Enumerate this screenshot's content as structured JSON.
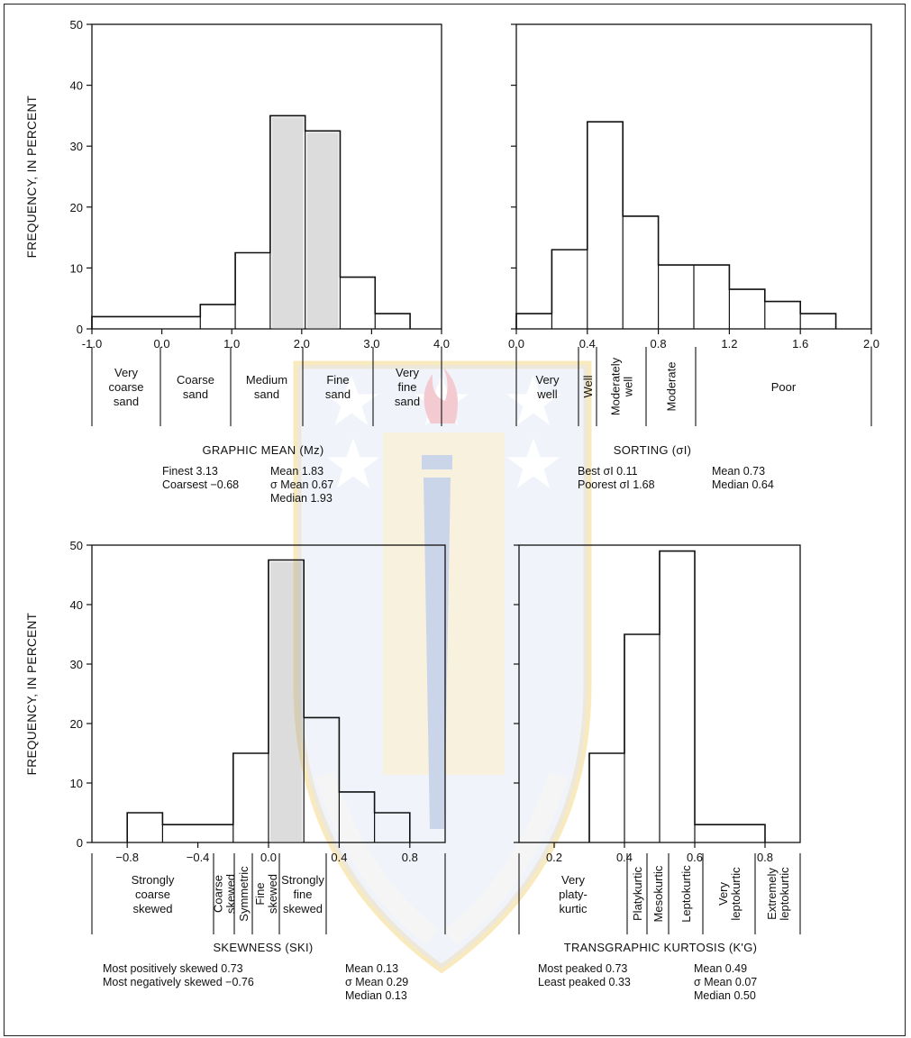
{
  "chart_data": [
    {
      "type": "bar",
      "title": "GRAPHIC MEAN (Mz)",
      "xlabel": "",
      "ylabel": "FREQUENCY, IN PERCENT",
      "xlim": [
        -1.0,
        4.0
      ],
      "ylim": [
        0,
        50
      ],
      "x_ticks": [
        "-1.0",
        "0.0",
        "1.0",
        "2.0",
        "3.0",
        "4.0"
      ],
      "y_ticks": [
        "0",
        "10",
        "20",
        "30",
        "40",
        "50"
      ],
      "bin_edges": [
        -1.0,
        0.55,
        1.05,
        1.55,
        2.05,
        2.55,
        3.05,
        3.55
      ],
      "values": [
        2,
        4,
        12.5,
        35,
        32.5,
        8.5,
        2.5
      ],
      "classes": [
        {
          "label": "Very coarse sand",
          "lines": [
            "Very",
            "coarse",
            "sand"
          ]
        },
        {
          "label": "Coarse sand",
          "lines": [
            "Coarse",
            "sand"
          ]
        },
        {
          "label": "Medium sand",
          "lines": [
            "Medium",
            "sand"
          ]
        },
        {
          "label": "Fine sand",
          "lines": [
            "Fine",
            "sand"
          ]
        },
        {
          "label": "Very fine sand",
          "lines": [
            "Very",
            "fine",
            "sand"
          ]
        }
      ],
      "stats_left": [
        "Finest 3.13",
        "Coarsest −0.68"
      ],
      "stats_right": [
        "Mean 1.83",
        "σ Mean 0.67",
        "Median 1.93"
      ]
    },
    {
      "type": "bar",
      "title": "SORTING (σI)",
      "xlabel": "",
      "ylabel": "",
      "xlim": [
        0.0,
        2.0
      ],
      "ylim": [
        0,
        50
      ],
      "x_ticks": [
        "0.0",
        "0.4",
        "0.8",
        "1.2",
        "1.6",
        "2.0"
      ],
      "bin_edges": [
        0.0,
        0.2,
        0.4,
        0.6,
        0.8,
        1.0,
        1.2,
        1.4,
        1.6,
        1.8
      ],
      "values": [
        2.5,
        13,
        34,
        18.5,
        10.5,
        10.5,
        6.5,
        4.5,
        2.5
      ],
      "classes": [
        {
          "label": "Very well",
          "lines": [
            "Very",
            "well"
          ]
        },
        {
          "label": "Well",
          "lines": [
            "Well"
          ]
        },
        {
          "label": "Moderately well",
          "lines": [
            "Moderately",
            "well"
          ]
        },
        {
          "label": "Moderate",
          "lines": [
            "Moderate"
          ]
        },
        {
          "label": "Poor",
          "lines": [
            "Poor"
          ]
        }
      ],
      "stats_left": [
        "Best σI 0.11",
        "Poorest σI 1.68"
      ],
      "stats_right": [
        "Mean 0.73",
        "Median 0.64"
      ]
    },
    {
      "type": "bar",
      "title": "SKEWNESS (SKI)",
      "xlabel": "",
      "ylabel": "FREQUENCY, IN PERCENT",
      "xlim": [
        -1.0,
        1.0
      ],
      "ylim": [
        0,
        50
      ],
      "x_ticks": [
        "−0.8",
        "−0.4",
        "0.0",
        "0.4",
        "0.8"
      ],
      "y_ticks": [
        "0",
        "10",
        "20",
        "30",
        "40",
        "50"
      ],
      "bin_edges": [
        -0.8,
        -0.6,
        -0.2,
        0.0,
        0.2,
        0.4,
        0.6,
        0.8
      ],
      "values": [
        5,
        3,
        15,
        47.5,
        21,
        8.5,
        5
      ],
      "classes": [
        {
          "label": "Strongly coarse skewed",
          "lines": [
            "Strongly",
            "coarse",
            "skewed"
          ]
        },
        {
          "label": "Coarse skewed",
          "lines": [
            "Coarse",
            "skewed"
          ]
        },
        {
          "label": "Symmetric",
          "lines": [
            "Symmetric"
          ]
        },
        {
          "label": "Fine skewed",
          "lines": [
            "Fine",
            "skewed"
          ]
        },
        {
          "label": "Strongly fine skewed",
          "lines": [
            "Strongly",
            "fine",
            "skewed"
          ]
        }
      ],
      "stats_left": [
        "Most positively skewed 0.73",
        "Most negatively skewed −0.76"
      ],
      "stats_right": [
        "Mean 0.13",
        "σ Mean 0.29",
        "Median 0.13"
      ]
    },
    {
      "type": "bar",
      "title": "TRANSGRAPHIC KURTOSIS (K'G)",
      "xlabel": "",
      "ylabel": "",
      "xlim": [
        0.1,
        0.9
      ],
      "ylim": [
        0,
        50
      ],
      "x_ticks": [
        "0.2",
        "0.4",
        "0.6",
        "0.8"
      ],
      "bin_edges": [
        0.3,
        0.4,
        0.5,
        0.6,
        0.8
      ],
      "values": [
        15,
        35,
        49,
        3
      ],
      "classes": [
        {
          "label": "Very platykurtic",
          "lines": [
            "Very",
            "platy-",
            "kurtic"
          ]
        },
        {
          "label": "Platykurtic",
          "lines": [
            "Platykurtic"
          ]
        },
        {
          "label": "Mesokurtic",
          "lines": [
            "Mesokurtic"
          ]
        },
        {
          "label": "Leptokurtic",
          "lines": [
            "Leptokurtic"
          ]
        },
        {
          "label": "Very leptokurtic",
          "lines": [
            "Very",
            "leptokurtic"
          ]
        },
        {
          "label": "Extremely leptokurtic",
          "lines": [
            "Extremely",
            "leptokurtic"
          ]
        }
      ],
      "stats_left": [
        "Most peaked 0.73",
        "Least peaked 0.33"
      ],
      "stats_right": [
        "Mean 0.49",
        "σ Mean 0.07",
        "Median 0.50"
      ]
    }
  ],
  "colors": {
    "ink": "#111111",
    "shade": "#9a9a9a",
    "watermark_gold": "#f5d98a",
    "watermark_blue": "#9fb4d8",
    "watermark_flame": "#e9a0a8"
  },
  "watermark": {
    "icon": "university-shield-watermark"
  }
}
